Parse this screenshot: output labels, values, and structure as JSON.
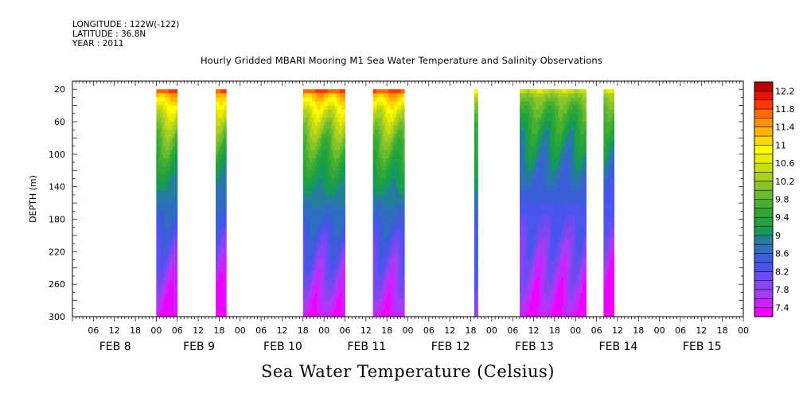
{
  "header": {
    "longitude": "LONGITUDE : 122W(-122)",
    "latitude": "LATITUDE : 36.8N",
    "year": "YEAR : 2011"
  },
  "chart_data": {
    "type": "heatmap",
    "title": "Hourly Gridded MBARI Mooring M1 Sea Water Temperature and Salinity Observations",
    "ylabel": "DEPTH (m)",
    "xlabel": "",
    "colorbar_title": "Sea Water Temperature (Celsius)",
    "y_range": [
      300,
      10
    ],
    "y_reversed": true,
    "y_ticks": [
      20,
      60,
      100,
      140,
      180,
      220,
      260,
      300
    ],
    "x_range_hours": [
      0,
      192
    ],
    "x_hour_ticks": [
      "06",
      "12",
      "18",
      "00",
      "06",
      "12",
      "18",
      "00",
      "06",
      "12",
      "18",
      "00",
      "06",
      "12",
      "18",
      "00",
      "06",
      "12",
      "18",
      "00",
      "06",
      "12",
      "18",
      "00",
      "06",
      "12",
      "18",
      "00",
      "06",
      "12",
      "18",
      "00"
    ],
    "x_date_labels": [
      "FEB  8",
      "FEB  9",
      "FEB 10",
      "FEB 11",
      "FEB 12",
      "FEB 13",
      "FEB 14",
      "FEB 15"
    ],
    "colorbar_levels": [
      7.4,
      7.6,
      7.8,
      8.0,
      8.2,
      8.4,
      8.6,
      8.8,
      9.0,
      9.2,
      9.4,
      9.6,
      9.8,
      10.0,
      10.2,
      10.4,
      10.6,
      10.8,
      11.0,
      11.2,
      11.4,
      11.6,
      11.8,
      12.0,
      12.2,
      12.4
    ],
    "colorbar_tick_labels": [
      "7.4",
      "7.8",
      "8.2",
      "8.6",
      "9",
      "9.4",
      "9.8",
      "10.2",
      "10.6",
      "11",
      "11.4",
      "11.8",
      "12.2"
    ],
    "colors": [
      "#ee00ff",
      "#cc22ff",
      "#a83cf6",
      "#8845f2",
      "#6a4cf2",
      "#4a55ee",
      "#3b5fd8",
      "#2f6fbf",
      "#257d9c",
      "#149a5a",
      "#20a040",
      "#2fa838",
      "#48b030",
      "#6aba2e",
      "#88c42a",
      "#a8d020",
      "#c8dc10",
      "#e8ec00",
      "#ffff00",
      "#ffd800",
      "#ffb400",
      "#ff9000",
      "#ff6a00",
      "#ff3a00",
      "#e81000",
      "#b80000"
    ],
    "observation_blocks": [
      {
        "start_hour": 24,
        "end_hour": 30,
        "surface_temp": 12.0,
        "deep_temp": 7.5
      },
      {
        "start_hour": 41,
        "end_hour": 44,
        "surface_temp": 11.9,
        "deep_temp": 7.4
      },
      {
        "start_hour": 66,
        "end_hour": 78,
        "surface_temp": 12.0,
        "deep_temp": 7.6
      },
      {
        "start_hour": 86,
        "end_hour": 95,
        "surface_temp": 12.0,
        "deep_temp": 7.6
      },
      {
        "start_hour": 115,
        "end_hour": 116,
        "surface_temp": 11.2,
        "deep_temp": 7.9
      },
      {
        "start_hour": 128,
        "end_hour": 147,
        "surface_temp": 10.7,
        "deep_temp": 7.6
      },
      {
        "start_hour": 152,
        "end_hour": 155,
        "surface_temp": 10.8,
        "deep_temp": 7.4
      }
    ]
  }
}
